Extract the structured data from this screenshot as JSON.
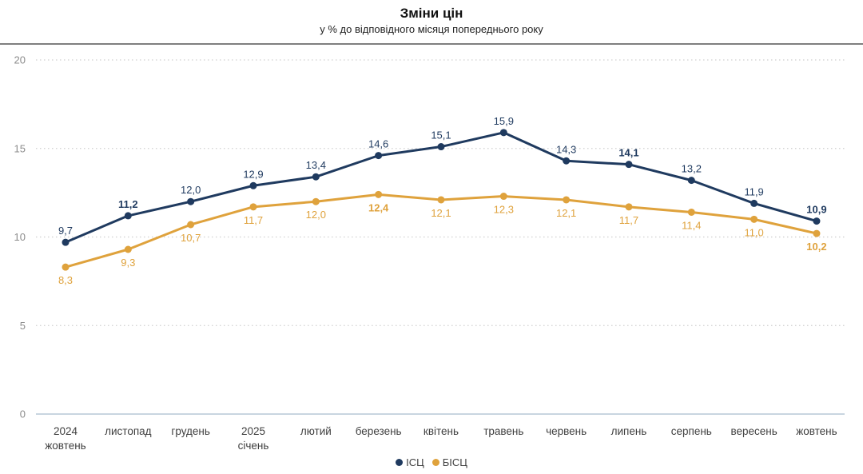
{
  "chart_data": {
    "type": "line",
    "title": "Зміни цін",
    "subtitle": "у % до відповідного місяця попереднього року",
    "categories": [
      "2024\nжовтень",
      "листопад",
      "грудень",
      "2025\nсічень",
      "лютий",
      "березень",
      "квітень",
      "травень",
      "червень",
      "липень",
      "серпень",
      "вересень",
      "жовтень"
    ],
    "series": [
      {
        "name": "ІСЦ",
        "color": "#1F3A5F",
        "values": [
          9.7,
          11.2,
          12.0,
          12.9,
          13.4,
          14.6,
          15.1,
          15.9,
          14.3,
          14.1,
          13.2,
          11.9,
          10.9
        ],
        "labels": [
          "9,7",
          "11,2",
          "12,0",
          "12,9",
          "13,4",
          "14,6",
          "15,1",
          "15,9",
          "14,3",
          "14,1",
          "13,2",
          "11,9",
          "10,9"
        ],
        "bold_labels": [
          1,
          9,
          12
        ],
        "label_position": "above"
      },
      {
        "name": "БІСЦ",
        "color": "#DFA23C",
        "values": [
          8.3,
          9.3,
          10.7,
          11.7,
          12.0,
          12.4,
          12.1,
          12.3,
          12.1,
          11.7,
          11.4,
          11.0,
          10.2
        ],
        "labels": [
          "8,3",
          "9,3",
          "10,7",
          "11,7",
          "12,0",
          "12,4",
          "12,1",
          "12,3",
          "12,1",
          "11,7",
          "11,4",
          "11,0",
          "10,2"
        ],
        "bold_labels": [
          5,
          12
        ],
        "label_position": "below"
      }
    ],
    "y_ticks": [
      0,
      5,
      10,
      15,
      20
    ],
    "ylim": [
      0,
      20
    ],
    "xlabel": "",
    "ylabel": "",
    "grid": "horizontal-dotted",
    "legend_position": "bottom-center",
    "colors": {
      "grid_dotted": "#cfcfcf",
      "zero_line": "#c9d5e0",
      "y_tick_text": "#8c8c8c",
      "x_tick_text": "#404040",
      "separator": "#7f7f7f",
      "legend_text": "#404040"
    }
  }
}
